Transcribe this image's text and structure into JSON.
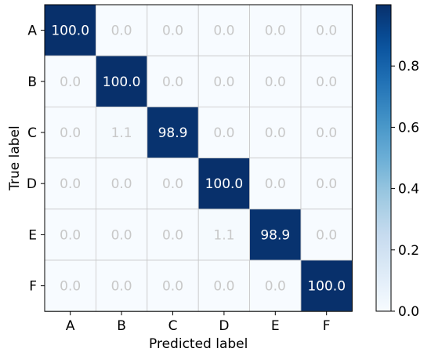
{
  "chart_data": {
    "type": "heatmap",
    "xlabel": "Predicted label",
    "ylabel": "True label",
    "x_categories": [
      "A",
      "B",
      "C",
      "D",
      "E",
      "F"
    ],
    "y_categories": [
      "A",
      "B",
      "C",
      "D",
      "E",
      "F"
    ],
    "values": [
      [
        100.0,
        0.0,
        0.0,
        0.0,
        0.0,
        0.0
      ],
      [
        0.0,
        100.0,
        0.0,
        0.0,
        0.0,
        0.0
      ],
      [
        0.0,
        1.1,
        98.9,
        0.0,
        0.0,
        0.0
      ],
      [
        0.0,
        0.0,
        0.0,
        100.0,
        0.0,
        0.0
      ],
      [
        0.0,
        0.0,
        0.0,
        1.1,
        98.9,
        0.0
      ],
      [
        0.0,
        0.0,
        0.0,
        0.0,
        0.0,
        100.0
      ]
    ],
    "cell_labels": [
      [
        "100.0",
        "0.0",
        "0.0",
        "0.0",
        "0.0",
        "0.0"
      ],
      [
        "0.0",
        "100.0",
        "0.0",
        "0.0",
        "0.0",
        "0.0"
      ],
      [
        "0.0",
        "1.1",
        "98.9",
        "0.0",
        "0.0",
        "0.0"
      ],
      [
        "0.0",
        "0.0",
        "0.0",
        "100.0",
        "0.0",
        "0.0"
      ],
      [
        "0.0",
        "0.0",
        "0.0",
        "1.1",
        "98.9",
        "0.0"
      ],
      [
        "0.0",
        "0.0",
        "0.0",
        "0.0",
        "0.0",
        "100.0"
      ]
    ],
    "colorbar": {
      "range": [
        0.0,
        1.0
      ],
      "ticks": [
        0.0,
        0.2,
        0.4,
        0.6,
        0.8
      ],
      "tick_labels": [
        "0.0",
        "0.2",
        "0.4",
        "0.6",
        "0.8"
      ]
    },
    "colormap": "Blues",
    "colors": {
      "low": "#f7fbff",
      "high": "#08306b",
      "text_dark_cell": "#ffffff",
      "text_light_cell": "#c8c8c8",
      "grid": "#c8c8c8"
    }
  }
}
